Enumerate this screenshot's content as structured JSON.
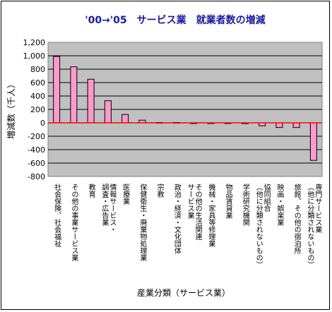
{
  "chart_data": {
    "type": "bar",
    "title": "'00→'05　サービス業　就業者数の増減",
    "xlabel": "産業分類（サービス業）",
    "ylabel": "増減数（千人）",
    "ylim": [
      -800,
      1200
    ],
    "yticks": [
      "1,200",
      "1,000",
      "800",
      "600",
      "400",
      "200",
      "0",
      "-200",
      "-400",
      "-600",
      "-800"
    ],
    "ytick_values": [
      1200,
      1000,
      800,
      600,
      400,
      200,
      0,
      -200,
      -400,
      -600,
      -800
    ],
    "grid": true,
    "bar_color": "#ff99cc",
    "zero_line_color": "#ff0000",
    "background_color": "#c0c0c0",
    "categories": [
      "社会保険、社会福祉",
      "その他の事業サービス業",
      "教育",
      "情報サービス・調査・広告業",
      "医療業",
      "保健衛生・廃棄物処理業",
      "宗教",
      "政治・経済・文化団体",
      "その他の生活関連サービス業",
      "機械・家具等修理業",
      "物品賃貸業",
      "学術研究機関",
      "協同組合（他に分類されないもの）",
      "映画・娯楽業",
      "旅館、その他の宿泊所",
      "専門サービス業（他に分類されないもの）"
    ],
    "category_lines": [
      [
        "社会保険、社会福祉"
      ],
      [
        "その他の事業サービス業"
      ],
      [
        "教育"
      ],
      [
        "調査・広告業",
        "情報サービス・"
      ],
      [
        "医療業"
      ],
      [
        "保健衛生・廃棄物処理業"
      ],
      [
        "宗教"
      ],
      [
        "政治・経済・文化団体"
      ],
      [
        "サービス業",
        "その他の生活関連"
      ],
      [
        "機械・家具等修理業"
      ],
      [
        "物品賃貸業"
      ],
      [
        "学術研究機関"
      ],
      [
        "（他に分類されないもの）",
        "協同組合"
      ],
      [
        "映画・娯楽業"
      ],
      [
        "旅館、その他の宿泊所"
      ],
      [
        "（他に分類されないもの）",
        "専門サービス業"
      ]
    ],
    "values": [
      990,
      835,
      650,
      330,
      125,
      40,
      5,
      5,
      -5,
      -5,
      -5,
      -12,
      -45,
      -70,
      -70,
      -560
    ]
  }
}
